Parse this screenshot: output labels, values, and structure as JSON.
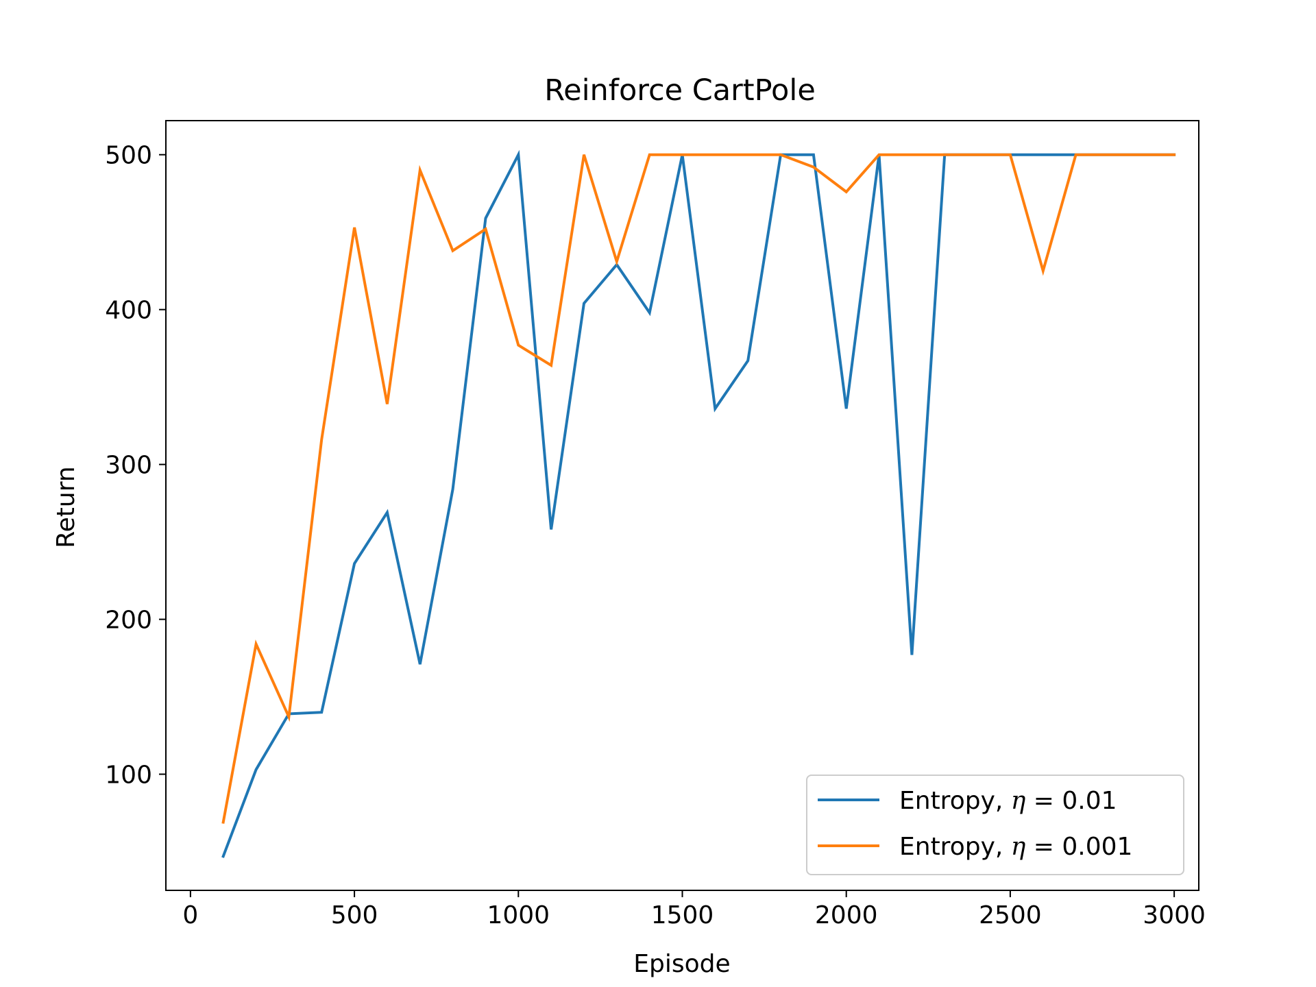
{
  "chart_data": {
    "type": "line",
    "title": "Reinforce CartPole",
    "xlabel": "Episode",
    "ylabel": "Return",
    "xlim": [
      -75,
      3075
    ],
    "ylim": [
      25,
      522
    ],
    "xticks": [
      0,
      500,
      1000,
      1500,
      2000,
      2500,
      3000
    ],
    "yticks": [
      100,
      200,
      300,
      400,
      500
    ],
    "grid": false,
    "legend_position": "lower-right",
    "x": [
      100,
      200,
      300,
      400,
      500,
      600,
      700,
      800,
      900,
      1000,
      1100,
      1200,
      1300,
      1400,
      1500,
      1600,
      1700,
      1800,
      1900,
      2000,
      2100,
      2200,
      2300,
      2400,
      2500,
      2600,
      2700,
      2800,
      2900,
      3000
    ],
    "series": [
      {
        "name_prefix": "Entropy, ",
        "name_symbol": "η",
        "name_suffix": " = 0.01",
        "color": "#1f77b4",
        "values": [
          47,
          103,
          139,
          140,
          236,
          269,
          171,
          284,
          459,
          500,
          258,
          404,
          429,
          398,
          500,
          336,
          367,
          500,
          500,
          336,
          500,
          177,
          500,
          500,
          500,
          500,
          500,
          500,
          500,
          500
        ]
      },
      {
        "name_prefix": "Entropy, ",
        "name_symbol": "η",
        "name_suffix": " = 0.001",
        "color": "#ff7f0e",
        "values": [
          69,
          184,
          137,
          316,
          453,
          339,
          490,
          438,
          452,
          377,
          364,
          500,
          431,
          500,
          500,
          500,
          500,
          500,
          492,
          476,
          500,
          500,
          500,
          500,
          500,
          425,
          500,
          500,
          500,
          500
        ]
      }
    ]
  }
}
